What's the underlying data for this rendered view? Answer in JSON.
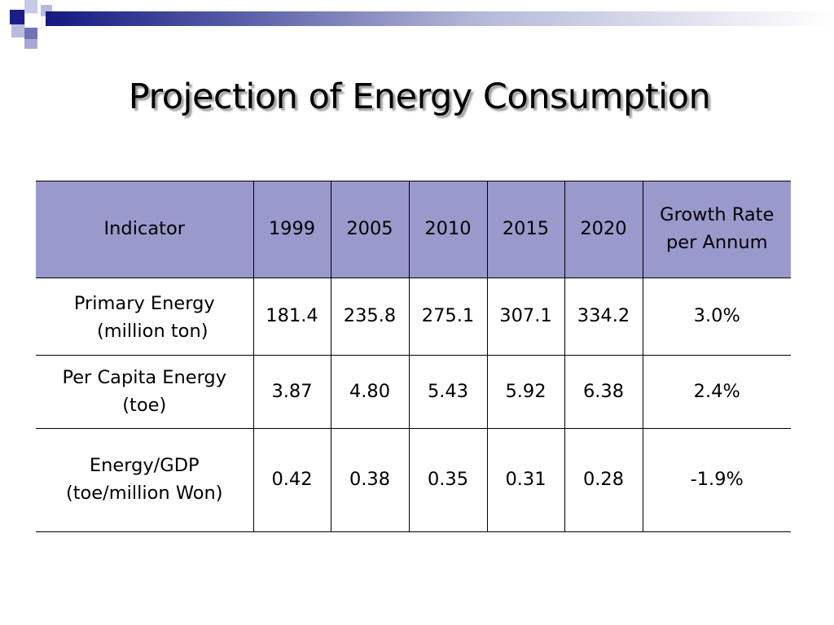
{
  "slide": {
    "title": "Projection of Energy Consumption"
  },
  "table": {
    "headers": [
      "Indicator",
      "1999",
      "2005",
      "2010",
      "2015",
      "2020",
      "Growth Rate per Annum"
    ],
    "rows": [
      {
        "indicator": [
          "Primary Energy",
          "(million ton)"
        ],
        "values": [
          "181.4",
          "235.8",
          "275.1",
          "307.1",
          "334.2"
        ],
        "growth": "3.0%"
      },
      {
        "indicator": [
          "Per Capita Energy",
          "(toe)"
        ],
        "values": [
          "3.87",
          "4.80",
          "5.43",
          "5.92",
          "6.38"
        ],
        "growth": "2.4%"
      },
      {
        "indicator": [
          "Energy/GDP",
          "(toe/million Won)"
        ],
        "values": [
          "0.42",
          "0.38",
          "0.35",
          "0.31",
          "0.28"
        ],
        "growth": "-1.9%"
      }
    ]
  },
  "colors": {
    "header_fill": "#9999cc",
    "accent_dark": "#141a80"
  }
}
